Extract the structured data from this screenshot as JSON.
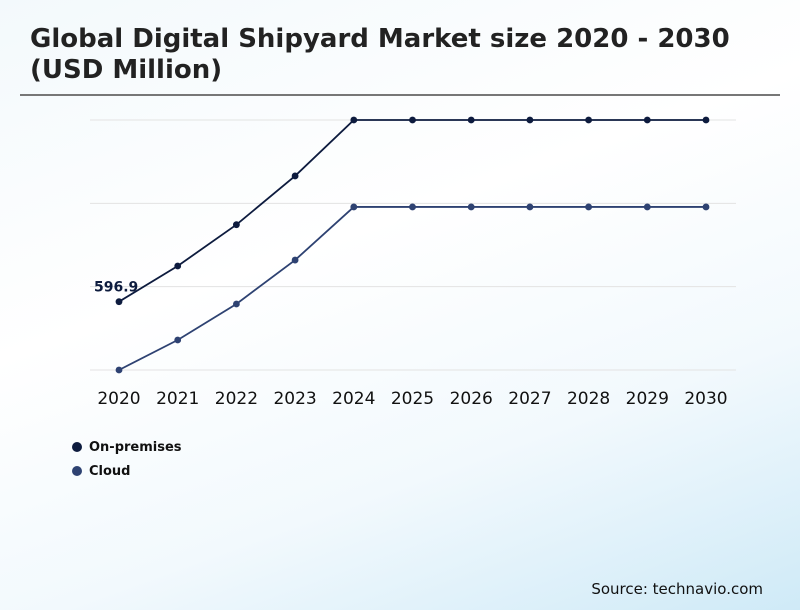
{
  "chart_data": {
    "type": "line",
    "title": "Global Digital Shipyard Market size 2020 - 2030 (USD Million)",
    "categories": [
      "2020",
      "2021",
      "2022",
      "2023",
      "2024",
      "2025",
      "2026",
      "2027",
      "2028",
      "2029",
      "2030"
    ],
    "series": [
      {
        "name": "On-premises",
        "color": "#0d1b3e",
        "values": [
          596.9,
          909,
          1270,
          1696,
          2185,
          2185,
          2185,
          2185,
          2185,
          2185,
          2185
        ]
      },
      {
        "name": "Cloud",
        "color": "#2e4272",
        "values": [
          0,
          262,
          577,
          961,
          1425,
          1425,
          1425,
          1425,
          1425,
          1425,
          1425
        ]
      }
    ],
    "data_labels": [
      {
        "series": 0,
        "index": 0,
        "text": "596.9"
      }
    ],
    "ylim": [
      0,
      2185
    ],
    "grid": true,
    "y_axis_labels": false,
    "legend": "bottom-left"
  },
  "source": "Source: technavio.com"
}
